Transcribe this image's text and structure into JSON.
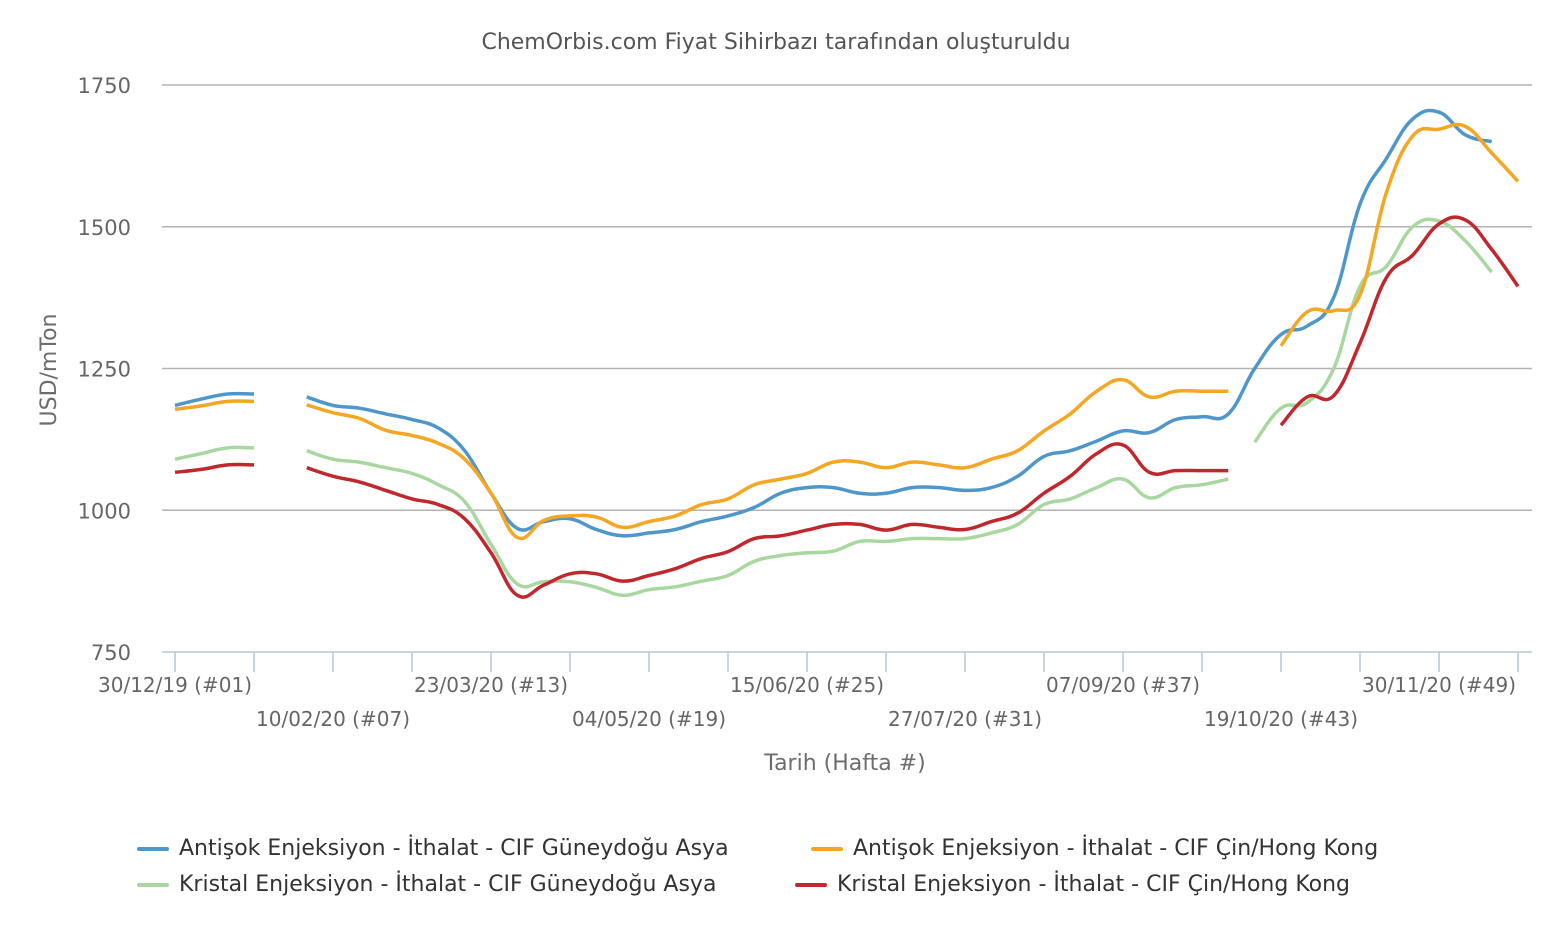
{
  "chart_data": {
    "type": "line",
    "title": "ChemOrbis.com Fiyat Sihirbazı tarafından oluşturuldu",
    "xlabel": "Tarih (Hafta #)",
    "ylabel": "USD/mTon",
    "ylim": [
      750,
      1750
    ],
    "yticks": [
      750,
      1000,
      1250,
      1500,
      1750
    ],
    "grid": true,
    "legend_position": "bottom",
    "x_week_range": [
      1,
      53
    ],
    "xtick_weeks": [
      1,
      4,
      7,
      10,
      13,
      16,
      19,
      22,
      25,
      28,
      31,
      34,
      37,
      40,
      43,
      46,
      49,
      52
    ],
    "xtick_labels": [
      {
        "week": 1,
        "label": "30/12/19 (#01)",
        "row": 1
      },
      {
        "week": 7,
        "label": "10/02/20 (#07)",
        "row": 2
      },
      {
        "week": 13,
        "label": "23/03/20 (#13)",
        "row": 1
      },
      {
        "week": 19,
        "label": "04/05/20 (#19)",
        "row": 2
      },
      {
        "week": 25,
        "label": "15/06/20 (#25)",
        "row": 1
      },
      {
        "week": 31,
        "label": "27/07/20 (#31)",
        "row": 2
      },
      {
        "week": 37,
        "label": "07/09/20 (#37)",
        "row": 1
      },
      {
        "week": 43,
        "label": "19/10/20 (#43)",
        "row": 2
      },
      {
        "week": 49,
        "label": "30/11/20 (#49)",
        "row": 1
      }
    ],
    "series": [
      {
        "name": "Antişok Enjeksiyon - İthalat - CIF Güneydoğu Asya",
        "color": "#4f96cb",
        "segments": [
          [
            [
              1,
              1185
            ],
            [
              2,
              1196
            ],
            [
              3,
              1205
            ],
            [
              4,
              1205
            ]
          ],
          [
            [
              6,
              1200
            ],
            [
              7,
              1185
            ],
            [
              8,
              1180
            ],
            [
              9,
              1170
            ],
            [
              10,
              1160
            ],
            [
              11,
              1145
            ],
            [
              12,
              1105
            ],
            [
              13,
              1030
            ],
            [
              14,
              968
            ],
            [
              15,
              980
            ],
            [
              16,
              985
            ],
            [
              17,
              966
            ],
            [
              18,
              955
            ],
            [
              19,
              960
            ],
            [
              20,
              966
            ],
            [
              21,
              980
            ],
            [
              22,
              990
            ],
            [
              23,
              1005
            ],
            [
              24,
              1030
            ],
            [
              25,
              1040
            ],
            [
              26,
              1040
            ],
            [
              27,
              1030
            ],
            [
              28,
              1030
            ],
            [
              29,
              1040
            ],
            [
              30,
              1040
            ],
            [
              31,
              1035
            ],
            [
              32,
              1040
            ],
            [
              33,
              1060
            ],
            [
              34,
              1095
            ],
            [
              35,
              1105
            ],
            [
              36,
              1122
            ],
            [
              37,
              1140
            ],
            [
              38,
              1137
            ],
            [
              39,
              1160
            ],
            [
              40,
              1165
            ],
            [
              41,
              1170
            ],
            [
              42,
              1250
            ],
            [
              43,
              1310
            ],
            [
              44,
              1325
            ],
            [
              45,
              1375
            ],
            [
              46,
              1540
            ],
            [
              47,
              1620
            ],
            [
              48,
              1690
            ],
            [
              49,
              1702
            ],
            [
              50,
              1662
            ],
            [
              51,
              1650
            ]
          ]
        ]
      },
      {
        "name": "Antişok Enjeksiyon - İthalat - CIF Çin/Hong Kong",
        "color": "#f5a623",
        "segments": [
          [
            [
              1,
              1178
            ],
            [
              2,
              1184
            ],
            [
              3,
              1192
            ],
            [
              4,
              1192
            ]
          ],
          [
            [
              6,
              1186
            ],
            [
              7,
              1172
            ],
            [
              8,
              1162
            ],
            [
              9,
              1141
            ],
            [
              10,
              1132
            ],
            [
              11,
              1118
            ],
            [
              12,
              1090
            ],
            [
              13,
              1030
            ],
            [
              14,
              952
            ],
            [
              15,
              982
            ],
            [
              16,
              990
            ],
            [
              17,
              988
            ],
            [
              18,
              970
            ],
            [
              19,
              980
            ],
            [
              20,
              990
            ],
            [
              21,
              1010
            ],
            [
              22,
              1020
            ],
            [
              23,
              1045
            ],
            [
              24,
              1055
            ],
            [
              25,
              1065
            ],
            [
              26,
              1085
            ],
            [
              27,
              1085
            ],
            [
              28,
              1075
            ],
            [
              29,
              1085
            ],
            [
              30,
              1080
            ],
            [
              31,
              1075
            ],
            [
              32,
              1090
            ],
            [
              33,
              1105
            ],
            [
              34,
              1140
            ],
            [
              35,
              1170
            ],
            [
              36,
              1210
            ],
            [
              37,
              1230
            ],
            [
              38,
              1200
            ],
            [
              39,
              1210
            ],
            [
              40,
              1210
            ],
            [
              41,
              1210
            ]
          ],
          [
            [
              43,
              1290
            ],
            [
              44,
              1350
            ],
            [
              45,
              1352
            ],
            [
              46,
              1380
            ],
            [
              47,
              1560
            ],
            [
              48,
              1660
            ],
            [
              49,
              1672
            ],
            [
              50,
              1677
            ],
            [
              51,
              1630
            ],
            [
              52,
              1580
            ]
          ]
        ]
      },
      {
        "name": "Kristal Enjeksiyon - İthalat - CIF Güneydoğu Asya",
        "color": "#a8d8a0",
        "segments": [
          [
            [
              1,
              1090
            ],
            [
              2,
              1100
            ],
            [
              3,
              1110
            ],
            [
              4,
              1110
            ]
          ],
          [
            [
              6,
              1105
            ],
            [
              7,
              1090
            ],
            [
              8,
              1085
            ],
            [
              9,
              1075
            ],
            [
              10,
              1065
            ],
            [
              11,
              1045
            ],
            [
              12,
              1015
            ],
            [
              13,
              940
            ],
            [
              14,
              870
            ],
            [
              15,
              874
            ],
            [
              16,
              874
            ],
            [
              17,
              864
            ],
            [
              18,
              850
            ],
            [
              19,
              860
            ],
            [
              20,
              865
            ],
            [
              21,
              875
            ],
            [
              22,
              885
            ],
            [
              23,
              910
            ],
            [
              24,
              920
            ],
            [
              25,
              925
            ],
            [
              26,
              928
            ],
            [
              27,
              945
            ],
            [
              28,
              945
            ],
            [
              29,
              950
            ],
            [
              30,
              950
            ],
            [
              31,
              950
            ],
            [
              32,
              960
            ],
            [
              33,
              975
            ],
            [
              34,
              1010
            ],
            [
              35,
              1020
            ],
            [
              36,
              1040
            ],
            [
              37,
              1055
            ],
            [
              38,
              1022
            ],
            [
              39,
              1040
            ],
            [
              40,
              1045
            ],
            [
              41,
              1055
            ]
          ],
          [
            [
              42,
              1120
            ],
            [
              43,
              1180
            ],
            [
              44,
              1190
            ],
            [
              45,
              1250
            ],
            [
              46,
              1395
            ],
            [
              47,
              1430
            ],
            [
              48,
              1500
            ],
            [
              49,
              1510
            ],
            [
              50,
              1475
            ],
            [
              51,
              1420
            ]
          ]
        ]
      },
      {
        "name": "Kristal Enjeksiyon - İthalat - CIF Çin/Hong Kong",
        "color": "#c0282d",
        "segments": [
          [
            [
              1,
              1067
            ],
            [
              2,
              1072
            ],
            [
              3,
              1080
            ],
            [
              4,
              1080
            ]
          ],
          [
            [
              6,
              1075
            ],
            [
              7,
              1060
            ],
            [
              8,
              1050
            ],
            [
              9,
              1035
            ],
            [
              10,
              1020
            ],
            [
              11,
              1010
            ],
            [
              12,
              985
            ],
            [
              13,
              925
            ],
            [
              14,
              850
            ],
            [
              15,
              868
            ],
            [
              16,
              888
            ],
            [
              17,
              888
            ],
            [
              18,
              875
            ],
            [
              19,
              885
            ],
            [
              20,
              897
            ],
            [
              21,
              915
            ],
            [
              22,
              927
            ],
            [
              23,
              950
            ],
            [
              24,
              955
            ],
            [
              25,
              965
            ],
            [
              26,
              975
            ],
            [
              27,
              975
            ],
            [
              28,
              965
            ],
            [
              29,
              975
            ],
            [
              30,
              970
            ],
            [
              31,
              966
            ],
            [
              32,
              980
            ],
            [
              33,
              995
            ],
            [
              34,
              1030
            ],
            [
              35,
              1060
            ],
            [
              36,
              1100
            ],
            [
              37,
              1115
            ],
            [
              38,
              1067
            ],
            [
              39,
              1070
            ],
            [
              40,
              1070
            ],
            [
              41,
              1070
            ]
          ],
          [
            [
              43,
              1150
            ],
            [
              44,
              1200
            ],
            [
              45,
              1202
            ],
            [
              46,
              1295
            ],
            [
              47,
              1410
            ],
            [
              48,
              1450
            ],
            [
              49,
              1505
            ],
            [
              50,
              1512
            ],
            [
              51,
              1460
            ],
            [
              52,
              1395
            ]
          ]
        ]
      }
    ]
  }
}
